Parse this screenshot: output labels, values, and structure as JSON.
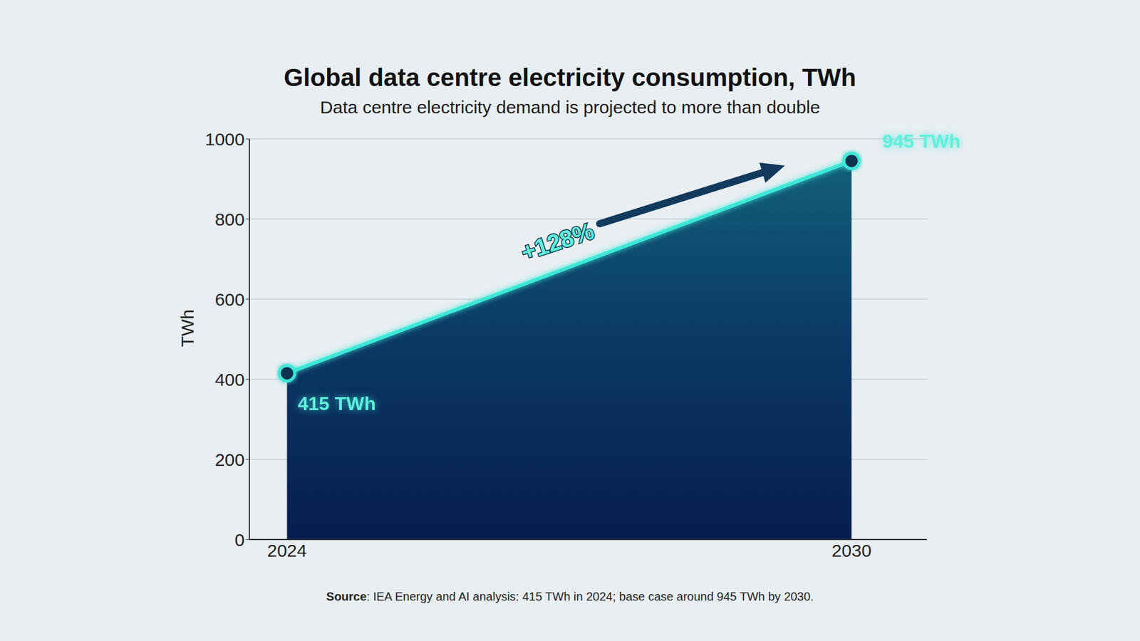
{
  "chart_data": {
    "type": "area",
    "title": "Global data centre electricity consumption, TWh",
    "subtitle": "Data centre electricity demand is projected to more than double",
    "y_label": "TWh",
    "x": [
      2024,
      2030
    ],
    "values": [
      415,
      945
    ],
    "value_labels": [
      "415 TWh",
      "945 TWh"
    ],
    "color": "#3de8d8",
    "xlim": [
      2023.6,
      2030.8
    ],
    "xticks": [
      2024,
      2030
    ],
    "ylim": [
      0,
      1000
    ],
    "yticks": [
      0,
      200,
      400,
      600,
      800,
      1000
    ],
    "grid": true,
    "data_labels": true,
    "annotation": "+128%",
    "source": "Source: IEA Energy and AI analysis: 415 TWh in 2024; base case around 945 TWh by 2030."
  }
}
